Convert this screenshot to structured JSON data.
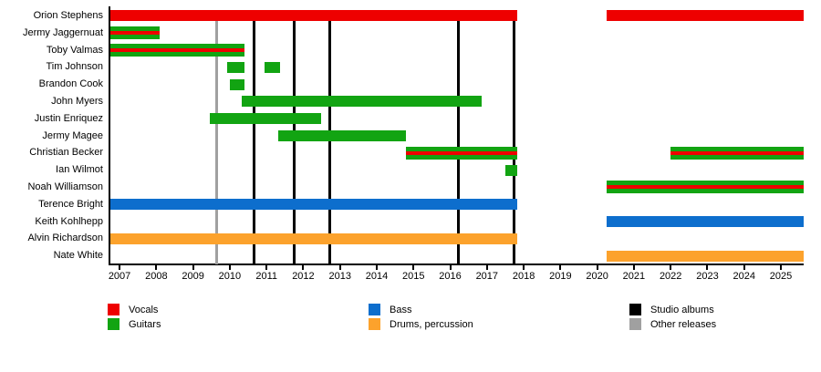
{
  "chart_data": {
    "type": "timeline",
    "description": "Band membership timeline gantt chart",
    "x_axis": {
      "min": 2006.75,
      "max": 2025.62,
      "ticks": [
        2007,
        2008,
        2009,
        2010,
        2011,
        2012,
        2013,
        2014,
        2015,
        2016,
        2017,
        2018,
        2019,
        2020,
        2021,
        2022,
        2023,
        2024,
        2025
      ]
    },
    "colors": {
      "vocals": "#EE0000",
      "guitars": "#12A412",
      "bass": "#0D6ECD",
      "drums": "#FCA22C",
      "studio_albums": "#000000",
      "other_releases": "#A0A0A0"
    },
    "members": [
      {
        "name": "Orion Stephens",
        "role": "vocals",
        "style": "solid",
        "intervals": [
          [
            2006.75,
            2017.82
          ],
          [
            2020.26,
            2025.62
          ]
        ]
      },
      {
        "name": "Jermy Jaggernuat",
        "role": "guitars",
        "style": "striped-vocals",
        "intervals": [
          [
            2006.75,
            2008.08
          ]
        ]
      },
      {
        "name": "Toby Valmas",
        "role": "guitars",
        "style": "striped-vocals",
        "intervals": [
          [
            2006.75,
            2010.41
          ]
        ]
      },
      {
        "name": "Tim Johnson",
        "role": "guitars",
        "style": "solid",
        "intervals": [
          [
            2009.92,
            2010.41
          ],
          [
            2010.95,
            2011.37
          ]
        ]
      },
      {
        "name": "Brandon Cook",
        "role": "guitars",
        "style": "solid",
        "intervals": [
          [
            2010.01,
            2010.41
          ]
        ]
      },
      {
        "name": "John Myers",
        "role": "guitars",
        "style": "solid",
        "intervals": [
          [
            2010.33,
            2016.85
          ]
        ]
      },
      {
        "name": "Justin Enriquez",
        "role": "guitars",
        "style": "solid",
        "intervals": [
          [
            2009.45,
            2012.48
          ]
        ]
      },
      {
        "name": "Jermy Magee",
        "role": "guitars",
        "style": "solid",
        "intervals": [
          [
            2011.31,
            2014.8
          ]
        ]
      },
      {
        "name": "Christian Becker",
        "role": "guitars",
        "style": "striped-vocals",
        "intervals": [
          [
            2014.8,
            2017.82
          ],
          [
            2022.0,
            2025.62
          ]
        ]
      },
      {
        "name": "Ian Wilmot",
        "role": "guitars",
        "style": "solid",
        "intervals": [
          [
            2017.49,
            2017.82
          ]
        ]
      },
      {
        "name": "Noah Williamson",
        "role": "guitars",
        "style": "striped-vocals",
        "intervals": [
          [
            2020.26,
            2025.62
          ]
        ]
      },
      {
        "name": "Terence Bright",
        "role": "bass",
        "style": "solid",
        "intervals": [
          [
            2006.75,
            2017.82
          ]
        ]
      },
      {
        "name": "Keith Kohlhepp",
        "role": "bass",
        "style": "solid",
        "intervals": [
          [
            2020.26,
            2025.62
          ]
        ]
      },
      {
        "name": "Alvin Richardson",
        "role": "drums",
        "style": "solid",
        "intervals": [
          [
            2006.75,
            2017.82
          ]
        ]
      },
      {
        "name": "Nate White",
        "role": "drums",
        "style": "solid",
        "intervals": [
          [
            2020.26,
            2025.62
          ]
        ]
      }
    ],
    "events": {
      "studio_albums": [
        2010.66,
        2011.76,
        2012.71,
        2016.23,
        2017.73
      ],
      "other_releases": [
        2009.65
      ]
    }
  },
  "legend": {
    "columns": [
      {
        "items": [
          {
            "label": "Vocals",
            "color": "vocals"
          },
          {
            "label": "Guitars",
            "color": "guitars"
          }
        ]
      },
      {
        "items": [
          {
            "label": "Bass",
            "color": "bass"
          },
          {
            "label": "Drums, percussion",
            "color": "drums"
          }
        ]
      },
      {
        "items": [
          {
            "label": "Studio albums",
            "color": "studio_albums"
          },
          {
            "label": "Other releases",
            "color": "other_releases"
          }
        ]
      }
    ]
  }
}
